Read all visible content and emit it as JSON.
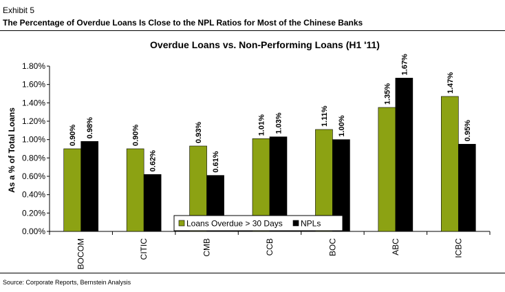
{
  "header": {
    "exhibit": "Exhibit 5",
    "headline": "The Percentage of Overdue Loans Is Close to the NPL Ratios for Most of the Chinese Banks"
  },
  "footer": {
    "source": "Source: Corporate Reports, Bernstein Analysis"
  },
  "colors": {
    "overdue": "#8ca213",
    "npl": "#000000"
  },
  "chart_data": {
    "type": "bar",
    "title": "Overdue Loans vs. Non-Performing Loans (H1 '11)",
    "xlabel": "",
    "ylabel": "As a % of Total Loans",
    "ylim": [
      0,
      1.8
    ],
    "yticks": [
      "0.00%",
      "0.20%",
      "0.40%",
      "0.60%",
      "0.80%",
      "1.00%",
      "1.20%",
      "1.40%",
      "1.60%",
      "1.80%"
    ],
    "categories": [
      "BOCOM",
      "CITIC",
      "CMB",
      "CCB",
      "BOC",
      "ABC",
      "ICBC"
    ],
    "series": [
      {
        "name": "Loans Overdue > 30 Days",
        "values": [
          0.9,
          0.9,
          0.93,
          1.01,
          1.11,
          1.35,
          1.47
        ],
        "labels": [
          "0.90%",
          "0.90%",
          "0.93%",
          "1.01%",
          "1.11%",
          "1.35%",
          "1.47%"
        ]
      },
      {
        "name": "NPLs",
        "values": [
          0.98,
          0.62,
          0.61,
          1.03,
          1.0,
          1.67,
          0.95
        ],
        "labels": [
          "0.98%",
          "0.62%",
          "0.61%",
          "1.03%",
          "1.00%",
          "1.67%",
          "0.95%"
        ]
      }
    ],
    "grid": false,
    "legend": "bottom-center"
  }
}
